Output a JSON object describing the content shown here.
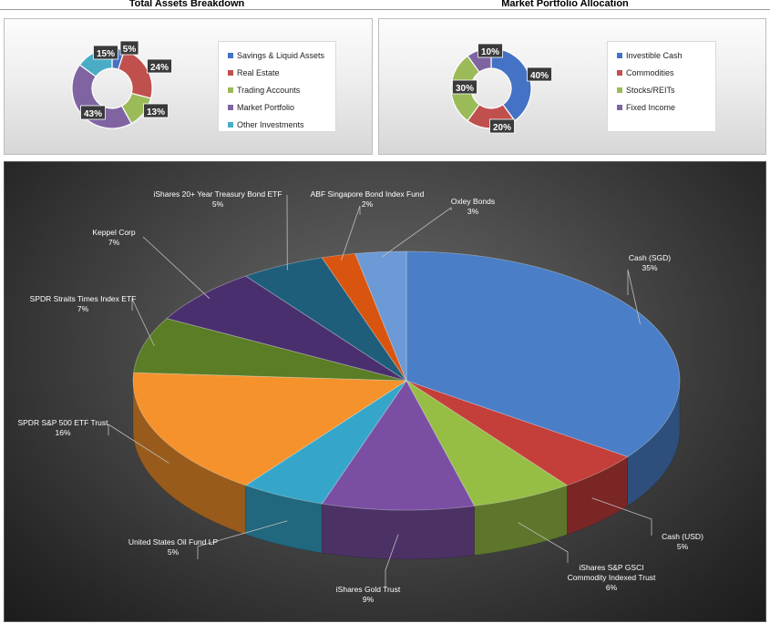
{
  "chart_data": [
    {
      "type": "pie",
      "title": "Total Assets Breakdown",
      "categories": [
        "Savings & Liquid Assets",
        "Real Estate",
        "Trading Accounts",
        "Market Portfolio",
        "Other Investments"
      ],
      "values": [
        5,
        24,
        13,
        43,
        15
      ],
      "data_labels": [
        "5%",
        "24%",
        "13%",
        "43%",
        "15%"
      ],
      "colors": [
        "#4472c4",
        "#c0504d",
        "#9bbb59",
        "#8064a2",
        "#4bacc6"
      ],
      "legend": "right"
    },
    {
      "type": "pie",
      "title": "Market Portfolio Allocation",
      "categories": [
        "Investible Cash",
        "Commodities",
        "Stocks/REITs",
        "Fixed Income"
      ],
      "values": [
        40,
        20,
        30,
        10
      ],
      "data_labels": [
        "40%",
        "20%",
        "30%",
        "10%"
      ],
      "colors": [
        "#4472c4",
        "#c0504d",
        "#9bbb59",
        "#8064a2"
      ],
      "legend": "right"
    },
    {
      "type": "pie",
      "categories": [
        "Cash (SGD)",
        "Cash (USD)",
        "iShares S&P GSCI Commodity Indexed Trust",
        "iShares Gold Trust",
        "United States Oil Fund LP",
        "SPDR S&P 500 ETF Trust",
        "SPDR Straits Times Index ETF",
        "Keppel Corp",
        "iShares 20+ Year Treasury Bond ETF",
        "ABF Singapore Bond Index Fund",
        "Oxley Bonds"
      ],
      "values": [
        35,
        5,
        6,
        9,
        5,
        16,
        7,
        7,
        5,
        2,
        3
      ],
      "data_labels": [
        "35%",
        "5%",
        "6%",
        "9%",
        "5%",
        "16%",
        "7%",
        "7%",
        "5%",
        "2%",
        "3%"
      ],
      "colors": [
        "#4a7ec7",
        "#c43e3a",
        "#96be45",
        "#7a4fa3",
        "#35a6c9",
        "#f5922c",
        "#5a7d25",
        "#4a2f6e",
        "#1f5e7a",
        "#d9540f",
        "#6b9ad6"
      ]
    }
  ]
}
